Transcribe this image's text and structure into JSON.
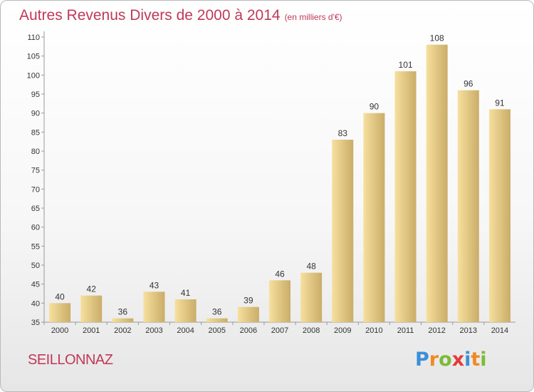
{
  "title": "Autres Revenus Divers de 2000 à 2014",
  "unit": "(en milliers d'€)",
  "place": "SEILLONNAZ",
  "logo": {
    "letters": [
      "P",
      "r",
      "o",
      "x",
      "i",
      "t",
      "i"
    ],
    "colors": [
      "#3a8fd6",
      "#f08a24",
      "#7cbb36",
      "#e43a3a",
      "#3a8fd6",
      "#f08a24",
      "#7cbb36"
    ]
  },
  "colors": {
    "bar_light": "#f7df9e",
    "bar_dark": "#c9ad68",
    "title": "#c0385a"
  },
  "chart_data": {
    "type": "bar",
    "categories": [
      "2000",
      "2001",
      "2002",
      "2003",
      "2004",
      "2005",
      "2006",
      "2007",
      "2008",
      "2009",
      "2010",
      "2011",
      "2012",
      "2013",
      "2014"
    ],
    "values": [
      40,
      42,
      36,
      43,
      41,
      36,
      39,
      46,
      48,
      83,
      90,
      101,
      108,
      96,
      91
    ],
    "ylim": [
      35,
      110
    ],
    "yticks": [
      35,
      40,
      45,
      50,
      55,
      60,
      65,
      70,
      75,
      80,
      85,
      90,
      95,
      100,
      105,
      110
    ],
    "grid": false
  }
}
